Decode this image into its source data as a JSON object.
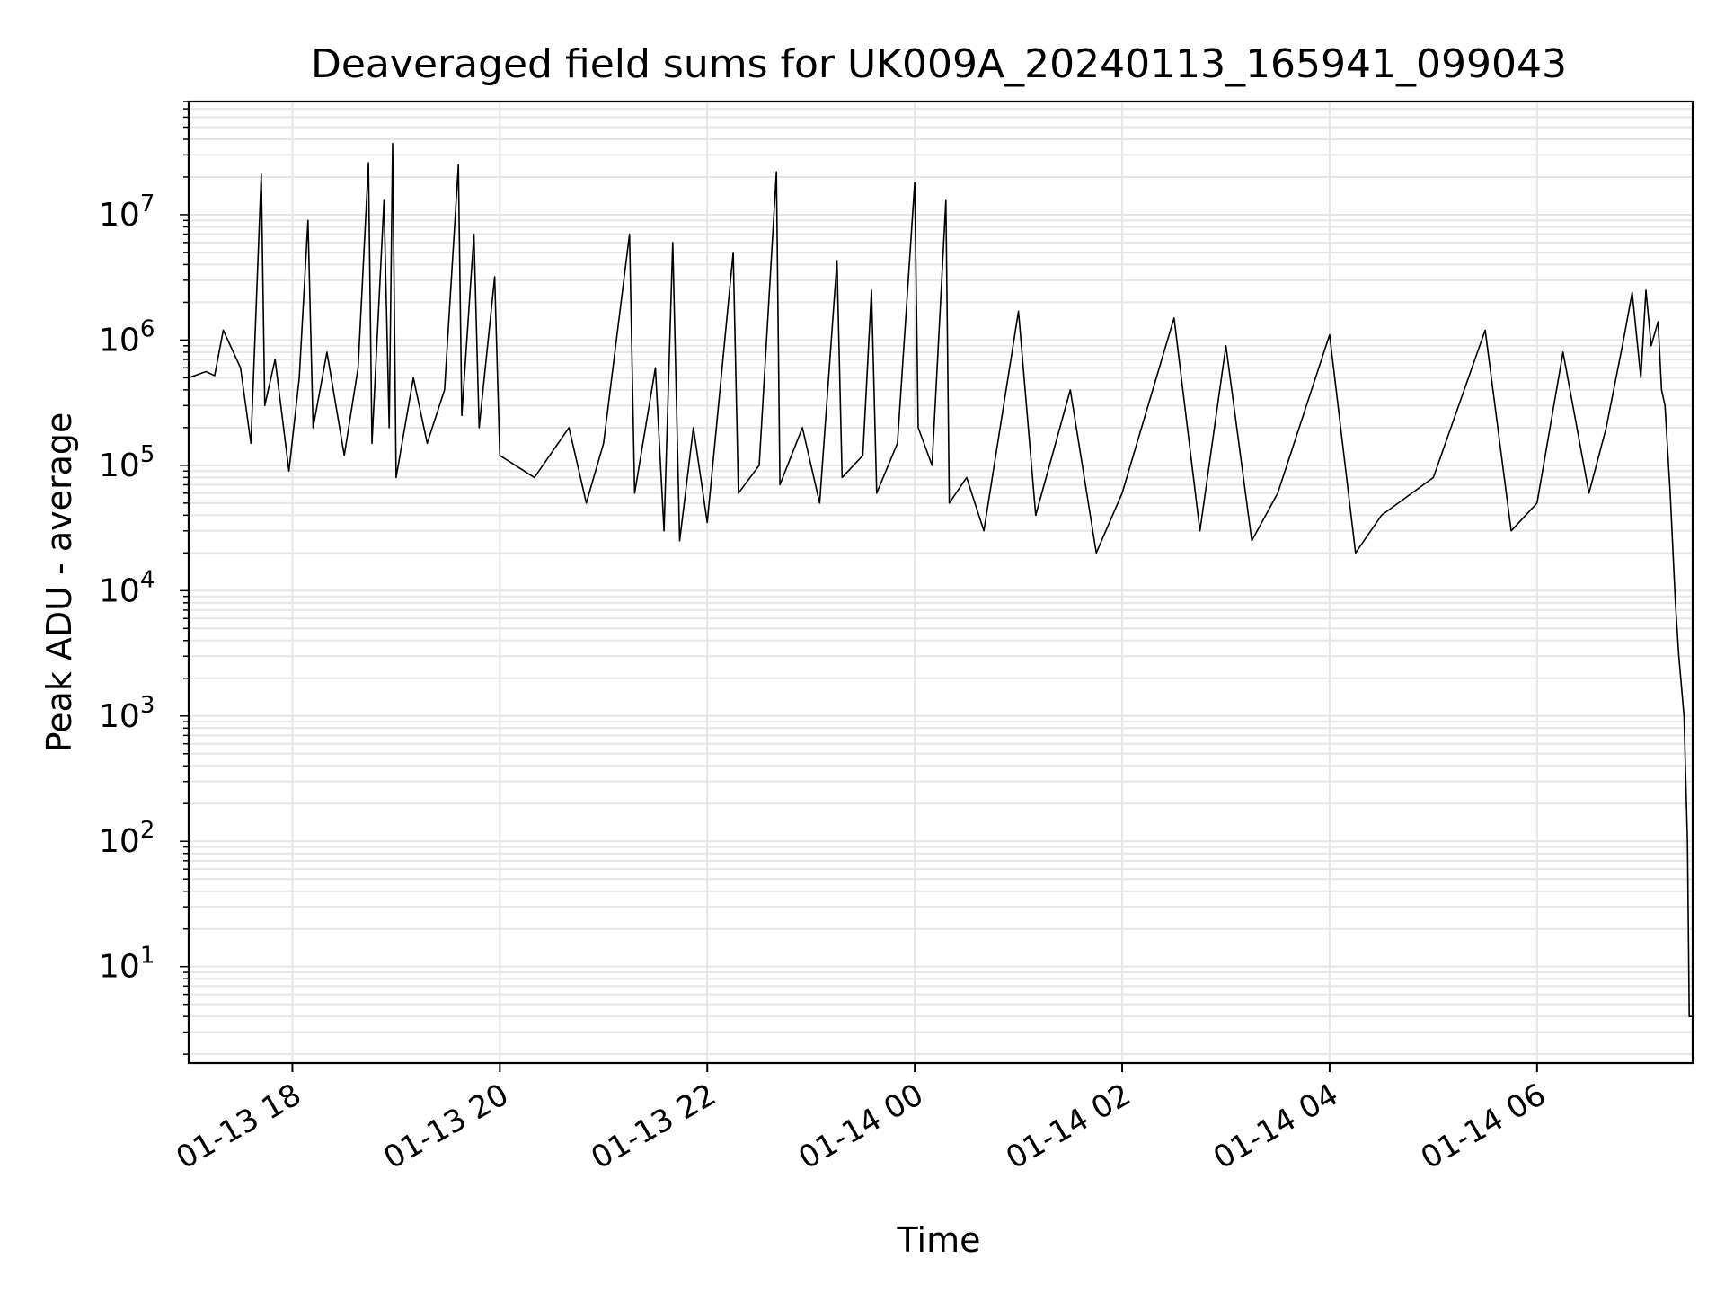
{
  "chart_data": {
    "type": "line",
    "title": "Deaveraged field sums for UK009A_20240113_165941_099043",
    "xlabel": "Time",
    "ylabel": "Peak ADU - average",
    "yscale": "log",
    "grid": true,
    "line_color": "#000000",
    "grid_color": "#e6e6e6",
    "xlim": [
      "2024-01-13 17:00",
      "2024-01-14 07:30"
    ],
    "ylim": [
      1.7,
      80000000
    ],
    "x_ticks": [
      {
        "t": "2024-01-13 18:00",
        "label": "01-13 18"
      },
      {
        "t": "2024-01-13 20:00",
        "label": "01-13 20"
      },
      {
        "t": "2024-01-13 22:00",
        "label": "01-13 22"
      },
      {
        "t": "2024-01-14 00:00",
        "label": "01-14 00"
      },
      {
        "t": "2024-01-14 02:00",
        "label": "01-14 02"
      },
      {
        "t": "2024-01-14 04:00",
        "label": "01-14 04"
      },
      {
        "t": "2024-01-14 06:00",
        "label": "01-14 06"
      }
    ],
    "y_ticks": [
      {
        "value": 10,
        "base": "10",
        "exp": "1"
      },
      {
        "value": 100,
        "base": "10",
        "exp": "2"
      },
      {
        "value": 1000,
        "base": "10",
        "exp": "3"
      },
      {
        "value": 10000,
        "base": "10",
        "exp": "4"
      },
      {
        "value": 100000,
        "base": "10",
        "exp": "5"
      },
      {
        "value": 1000000,
        "base": "10",
        "exp": "6"
      },
      {
        "value": 10000000,
        "base": "10",
        "exp": "7"
      }
    ],
    "series": [
      {
        "points": [
          [
            "2024-01-13 17:00",
            500000
          ],
          [
            "2024-01-13 17:10",
            560000
          ],
          [
            "2024-01-13 17:15",
            520000
          ],
          [
            "2024-01-13 17:20",
            1200000
          ],
          [
            "2024-01-13 17:30",
            600000
          ],
          [
            "2024-01-13 17:36",
            150000
          ],
          [
            "2024-01-13 17:42",
            21000000
          ],
          [
            "2024-01-13 17:44",
            300000
          ],
          [
            "2024-01-13 17:50",
            700000
          ],
          [
            "2024-01-13 17:58",
            90000
          ],
          [
            "2024-01-13 18:04",
            500000
          ],
          [
            "2024-01-13 18:09",
            9000000
          ],
          [
            "2024-01-13 18:12",
            200000
          ],
          [
            "2024-01-13 18:20",
            800000
          ],
          [
            "2024-01-13 18:30",
            120000
          ],
          [
            "2024-01-13 18:38",
            600000
          ],
          [
            "2024-01-13 18:44",
            26000000
          ],
          [
            "2024-01-13 18:46",
            150000
          ],
          [
            "2024-01-13 18:53",
            13000000
          ],
          [
            "2024-01-13 18:56",
            200000
          ],
          [
            "2024-01-13 18:58",
            37000000
          ],
          [
            "2024-01-13 19:00",
            80000
          ],
          [
            "2024-01-13 19:10",
            500000
          ],
          [
            "2024-01-13 19:18",
            150000
          ],
          [
            "2024-01-13 19:28",
            400000
          ],
          [
            "2024-01-13 19:36",
            25000000
          ],
          [
            "2024-01-13 19:38",
            250000
          ],
          [
            "2024-01-13 19:45",
            7000000
          ],
          [
            "2024-01-13 19:48",
            200000
          ],
          [
            "2024-01-13 19:57",
            3200000
          ],
          [
            "2024-01-13 20:00",
            120000
          ],
          [
            "2024-01-13 20:20",
            80000
          ],
          [
            "2024-01-13 20:40",
            200000
          ],
          [
            "2024-01-13 20:50",
            50000
          ],
          [
            "2024-01-13 21:00",
            150000
          ],
          [
            "2024-01-13 21:15",
            7000000
          ],
          [
            "2024-01-13 21:18",
            60000
          ],
          [
            "2024-01-13 21:30",
            600000
          ],
          [
            "2024-01-13 21:35",
            30000
          ],
          [
            "2024-01-13 21:40",
            6000000
          ],
          [
            "2024-01-13 21:44",
            25000
          ],
          [
            "2024-01-13 21:52",
            200000
          ],
          [
            "2024-01-13 22:00",
            35000
          ],
          [
            "2024-01-13 22:15",
            5000000
          ],
          [
            "2024-01-13 22:18",
            60000
          ],
          [
            "2024-01-13 22:30",
            100000
          ],
          [
            "2024-01-13 22:40",
            22000000
          ],
          [
            "2024-01-13 22:42",
            70000
          ],
          [
            "2024-01-13 22:55",
            200000
          ],
          [
            "2024-01-13 23:05",
            50000
          ],
          [
            "2024-01-13 23:15",
            4300000
          ],
          [
            "2024-01-13 23:18",
            80000
          ],
          [
            "2024-01-13 23:30",
            120000
          ],
          [
            "2024-01-13 23:35",
            2500000
          ],
          [
            "2024-01-13 23:38",
            60000
          ],
          [
            "2024-01-13 23:50",
            150000
          ],
          [
            "2024-01-14 00:00",
            18000000
          ],
          [
            "2024-01-14 00:02",
            200000
          ],
          [
            "2024-01-14 00:10",
            100000
          ],
          [
            "2024-01-14 00:18",
            13000000
          ],
          [
            "2024-01-14 00:20",
            50000
          ],
          [
            "2024-01-14 00:30",
            80000
          ],
          [
            "2024-01-14 00:40",
            30000
          ],
          [
            "2024-01-14 01:00",
            1700000
          ],
          [
            "2024-01-14 01:10",
            40000
          ],
          [
            "2024-01-14 01:30",
            400000
          ],
          [
            "2024-01-14 01:45",
            20000
          ],
          [
            "2024-01-14 02:00",
            60000
          ],
          [
            "2024-01-14 02:30",
            1500000
          ],
          [
            "2024-01-14 02:45",
            30000
          ],
          [
            "2024-01-14 03:00",
            900000
          ],
          [
            "2024-01-14 03:15",
            25000
          ],
          [
            "2024-01-14 03:30",
            60000
          ],
          [
            "2024-01-14 04:00",
            1100000
          ],
          [
            "2024-01-14 04:15",
            20000
          ],
          [
            "2024-01-14 04:30",
            40000
          ],
          [
            "2024-01-14 05:00",
            80000
          ],
          [
            "2024-01-14 05:30",
            1200000
          ],
          [
            "2024-01-14 05:45",
            30000
          ],
          [
            "2024-01-14 06:00",
            50000
          ],
          [
            "2024-01-14 06:15",
            800000
          ],
          [
            "2024-01-14 06:30",
            60000
          ],
          [
            "2024-01-14 06:40",
            200000
          ],
          [
            "2024-01-14 06:50",
            1000000
          ],
          [
            "2024-01-14 06:55",
            2400000
          ],
          [
            "2024-01-14 07:00",
            500000
          ],
          [
            "2024-01-14 07:03",
            2500000
          ],
          [
            "2024-01-14 07:06",
            900000
          ],
          [
            "2024-01-14 07:10",
            1400000
          ],
          [
            "2024-01-14 07:12",
            400000
          ],
          [
            "2024-01-14 07:14",
            300000
          ],
          [
            "2024-01-14 07:17",
            60000
          ],
          [
            "2024-01-14 07:20",
            8000
          ],
          [
            "2024-01-14 07:22",
            3000
          ],
          [
            "2024-01-14 07:25",
            1000
          ],
          [
            "2024-01-14 07:27",
            100
          ],
          [
            "2024-01-14 07:28",
            4
          ],
          [
            "2024-01-14 07:30",
            4
          ]
        ]
      }
    ]
  }
}
